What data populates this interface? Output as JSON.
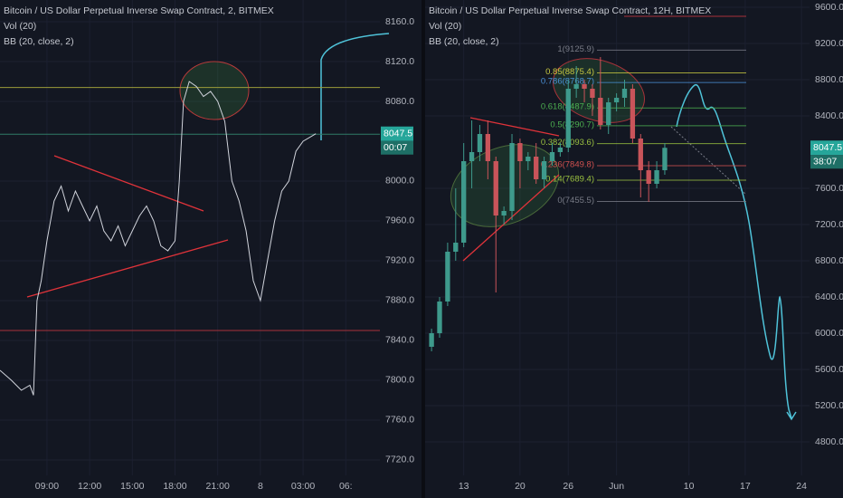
{
  "chart_data": [
    {
      "type": "line",
      "title": "Bitcoin / US Dollar Perpetual Inverse Swap Contract, 2, BITMEX",
      "indicators": [
        "Vol (20)",
        "BB (20, close, 2)"
      ],
      "color": "#d1d4dc",
      "x": [
        5.7,
        6.5,
        7.2,
        7.8,
        8.05,
        8.3,
        8.6,
        9,
        9.5,
        10,
        10.5,
        11,
        11.5,
        12,
        12.5,
        13,
        13.5,
        14,
        14.5,
        15,
        15.5,
        16,
        16.5,
        17,
        17.5,
        18,
        18.3,
        18.6,
        19,
        19.5,
        20,
        20.5,
        21,
        21.5,
        22,
        22.5,
        23,
        23.5,
        24,
        24.5,
        25,
        25.5,
        26,
        26.5,
        27,
        27.9
      ],
      "values": [
        7810,
        7800,
        7790,
        7795,
        7785,
        7880,
        7900,
        7940,
        7980,
        7995,
        7970,
        7990,
        7975,
        7960,
        7975,
        7950,
        7940,
        7955,
        7935,
        7950,
        7965,
        7975,
        7960,
        7935,
        7930,
        7940,
        8000,
        8080,
        8100,
        8095,
        8085,
        8090,
        8080,
        8060,
        8000,
        7980,
        7950,
        7900,
        7880,
        7920,
        7960,
        7990,
        8000,
        8030,
        8040,
        8047.5
      ],
      "xlim": [
        5.7,
        32.4
      ],
      "ylim": [
        7704.5,
        8181.8
      ],
      "xticks": [
        {
          "value": 9,
          "label": "09:00"
        },
        {
          "value": 12,
          "label": "12:00"
        },
        {
          "value": 15,
          "label": "15:00"
        },
        {
          "value": 18,
          "label": "18:00"
        },
        {
          "value": 21,
          "label": "21:00"
        },
        {
          "value": 24,
          "label": "8"
        },
        {
          "value": 27,
          "label": "03:00"
        },
        {
          "value": 30,
          "label": "06:"
        }
      ],
      "yticks": [
        {
          "value": 8160,
          "label": "8160.0"
        },
        {
          "value": 8120,
          "label": "8120.0"
        },
        {
          "value": 8080,
          "label": "8080.0"
        },
        {
          "value": 8000,
          "label": "8000.0"
        },
        {
          "value": 7960,
          "label": "7960.0"
        },
        {
          "value": 7920,
          "label": "7920.0"
        },
        {
          "value": 7880,
          "label": "7880.0"
        },
        {
          "value": 7840,
          "label": "7840.0"
        },
        {
          "value": 7800,
          "label": "7800.0"
        },
        {
          "value": 7760,
          "label": "7760.0"
        },
        {
          "value": 7720,
          "label": "7720.0"
        }
      ],
      "hlines": [
        {
          "value": 8094,
          "color": "#9c9c3a"
        },
        {
          "value": 8047,
          "color": "#2f7a66"
        },
        {
          "value": 7850,
          "color": "#a8323a"
        }
      ],
      "last_price": 8047.5,
      "countdown": "00:07",
      "grid": true
    },
    {
      "type": "candlestick",
      "title": "Bitcoin / US Dollar Perpetual Inverse Swap Contract, 12H, BITMEX",
      "indicators": [
        "Vol (20)",
        "BB (20, close, 2)"
      ],
      "up_color": "#3e9a8c",
      "down_color": "#c9545a",
      "x": [
        9,
        10,
        11,
        12,
        13,
        14,
        15,
        16,
        17,
        18,
        19,
        20,
        21,
        22,
        23,
        24,
        25,
        26,
        27,
        28,
        29,
        30,
        31,
        32,
        33,
        34,
        35,
        36,
        37,
        38
      ],
      "open": [
        5850,
        6000,
        6350,
        6900,
        7000,
        7900,
        8000,
        8200,
        7900,
        7300,
        7350,
        8100,
        7900,
        7950,
        7700,
        7900,
        8000,
        8050,
        8700,
        8750,
        8700,
        8600,
        8300,
        8550,
        8600,
        8700,
        8150,
        7800,
        7650,
        7800
      ],
      "high": [
        6050,
        6400,
        7000,
        7600,
        8100,
        8350,
        8300,
        8350,
        7950,
        7400,
        8200,
        8150,
        8000,
        8100,
        7950,
        8100,
        8100,
        8800,
        8950,
        8800,
        8750,
        9050,
        8600,
        8650,
        8800,
        8750,
        8200,
        7900,
        7900,
        8100
      ],
      "low": [
        5800,
        5950,
        6300,
        6800,
        6950,
        7600,
        7900,
        7700,
        6450,
        7200,
        7250,
        7600,
        7800,
        7650,
        7600,
        7850,
        7950,
        8000,
        8600,
        8550,
        8400,
        8250,
        8200,
        8450,
        8500,
        8100,
        7500,
        7450,
        7600,
        7750
      ],
      "close": [
        6000,
        6350,
        6900,
        7000,
        7900,
        8000,
        8200,
        7900,
        7300,
        7350,
        8100,
        7900,
        7950,
        7700,
        7900,
        8000,
        8050,
        8700,
        8750,
        8700,
        8600,
        8300,
        8550,
        8600,
        8700,
        8150,
        7800,
        7650,
        7800,
        8047.5
      ],
      "xlim": [
        8.2,
        56
      ],
      "ylim": [
        4430,
        9680
      ],
      "xticks": [
        13,
        20,
        26,
        {
          "value": 32,
          "label": "Jun"
        },
        {
          "value": 41,
          "label": "10"
        },
        {
          "value": 48,
          "label": "17"
        },
        {
          "value": 55,
          "label": "24"
        }
      ],
      "yticks": [
        {
          "value": 9600,
          "label": "9600.0"
        },
        {
          "value": 9200,
          "label": "9200.0"
        },
        {
          "value": 8800,
          "label": "8800.0"
        },
        {
          "value": 8400,
          "label": "8400.0"
        },
        {
          "value": 7600,
          "label": "7600.0"
        },
        {
          "value": 7200,
          "label": "7200.0"
        },
        {
          "value": 6800,
          "label": "6800.0"
        },
        {
          "value": 6400,
          "label": "6400.0"
        },
        {
          "value": 6000,
          "label": "6000.0"
        },
        {
          "value": 5600,
          "label": "5600.0"
        },
        {
          "value": 5200,
          "label": "5200.0"
        },
        {
          "value": 4800,
          "label": "4800.0"
        }
      ],
      "hlines": [
        {
          "value": 9500,
          "color": "#a8323a"
        }
      ],
      "fib": [
        {
          "value": 9125.9,
          "label": "1(9125.9)",
          "color": "#787b86"
        },
        {
          "value": 8875.4,
          "label": "0.85(8875.4)",
          "color": "#c8c840"
        },
        {
          "value": 8768.7,
          "label": "0.786(8768.7)",
          "color": "#4a90d6"
        },
        {
          "value": 8487.9,
          "label": "0.618(8487.9)",
          "color": "#4caf50"
        },
        {
          "value": 8290.7,
          "label": "0.5(8290.7)",
          "color": "#4caf50"
        },
        {
          "value": 8093.6,
          "label": "0.382(8093.6)",
          "color": "#9ac040"
        },
        {
          "value": 7849.8,
          "label": "0.236(7849.8)",
          "color": "#d0504f"
        },
        {
          "value": 7689.4,
          "label": "0.14(7689.4)",
          "color": "#9ac040"
        },
        {
          "value": 7455.5,
          "label": "0(7455.5)",
          "color": "#787b86"
        }
      ],
      "last_price": 8047.5,
      "countdown": "38:07",
      "grid": true
    }
  ]
}
